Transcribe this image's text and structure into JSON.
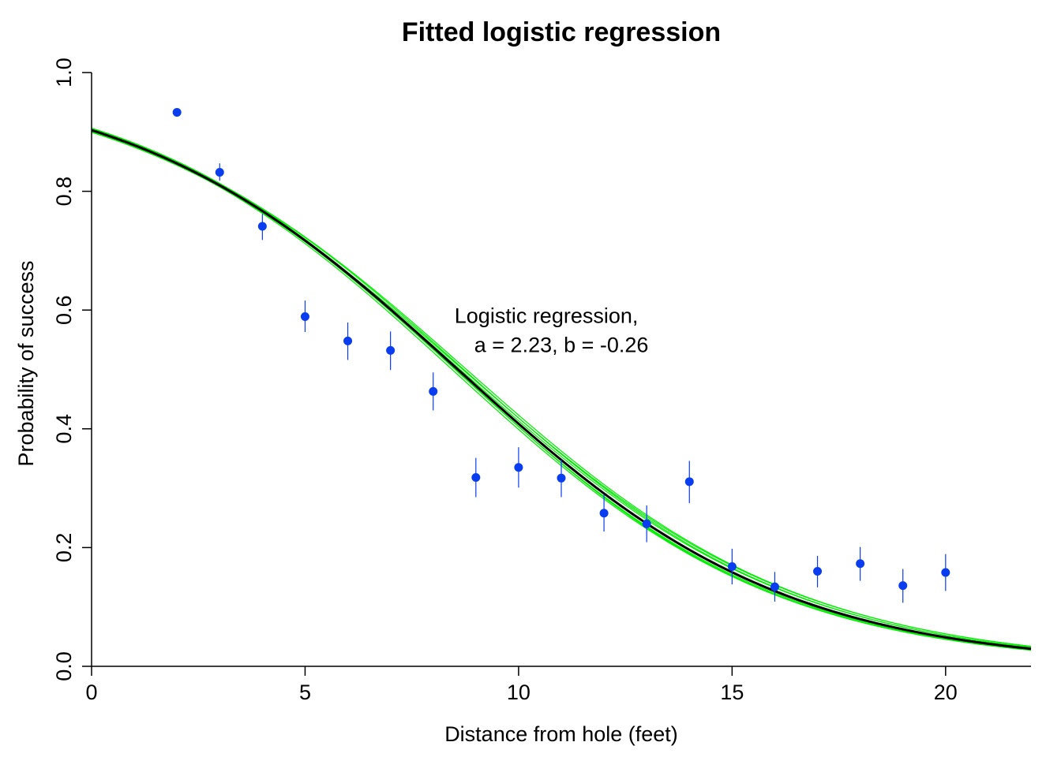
{
  "chart_data": {
    "type": "scatter",
    "title": "Fitted logistic regression",
    "xlabel": "Distance from hole (feet)",
    "ylabel": "Probability of success",
    "xlim": [
      0,
      22
    ],
    "ylim": [
      0,
      1
    ],
    "x_ticks": [
      0,
      5,
      10,
      15,
      20
    ],
    "x_tick_labels": [
      "0",
      "5",
      "10",
      "15",
      "20"
    ],
    "y_ticks": [
      0,
      0.2,
      0.4,
      0.6,
      0.8,
      1.0
    ],
    "y_tick_labels": [
      "0.0",
      "0.2",
      "0.4",
      "0.6",
      "0.8",
      "1.0"
    ],
    "grid": false,
    "annotation": {
      "lines": [
        "Logistic regression,",
        "a = 2.23, b = -0.26"
      ],
      "x": 8.5,
      "y": 0.59
    },
    "fit": {
      "a": 2.23,
      "b": -0.26,
      "color": "#000000"
    },
    "uncertainty_curves": {
      "color": "#00ee00",
      "params": [
        [
          2.25,
          -0.262
        ],
        [
          2.21,
          -0.258
        ],
        [
          2.24,
          -0.257
        ],
        [
          2.22,
          -0.263
        ],
        [
          2.2,
          -0.255
        ],
        [
          2.26,
          -0.265
        ],
        [
          2.23,
          -0.254
        ],
        [
          2.19,
          -0.252
        ],
        [
          2.27,
          -0.266
        ],
        [
          2.23,
          -0.262
        ]
      ]
    },
    "points_color": "#0a3cf0",
    "points": [
      {
        "x": 2,
        "y": 0.933,
        "lo": 0.928,
        "hi": 0.938
      },
      {
        "x": 3,
        "y": 0.832,
        "lo": 0.818,
        "hi": 0.847
      },
      {
        "x": 4,
        "y": 0.741,
        "lo": 0.718,
        "hi": 0.762
      },
      {
        "x": 5,
        "y": 0.589,
        "lo": 0.563,
        "hi": 0.616
      },
      {
        "x": 6,
        "y": 0.548,
        "lo": 0.516,
        "hi": 0.579
      },
      {
        "x": 7,
        "y": 0.532,
        "lo": 0.499,
        "hi": 0.564
      },
      {
        "x": 8,
        "y": 0.463,
        "lo": 0.431,
        "hi": 0.495
      },
      {
        "x": 9,
        "y": 0.318,
        "lo": 0.285,
        "hi": 0.351
      },
      {
        "x": 10,
        "y": 0.335,
        "lo": 0.301,
        "hi": 0.369
      },
      {
        "x": 11,
        "y": 0.317,
        "lo": 0.285,
        "hi": 0.348
      },
      {
        "x": 12,
        "y": 0.258,
        "lo": 0.227,
        "hi": 0.289
      },
      {
        "x": 13,
        "y": 0.24,
        "lo": 0.209,
        "hi": 0.271
      },
      {
        "x": 14,
        "y": 0.311,
        "lo": 0.275,
        "hi": 0.346
      },
      {
        "x": 15,
        "y": 0.168,
        "lo": 0.138,
        "hi": 0.198
      },
      {
        "x": 16,
        "y": 0.134,
        "lo": 0.109,
        "hi": 0.159
      },
      {
        "x": 17,
        "y": 0.16,
        "lo": 0.133,
        "hi": 0.186
      },
      {
        "x": 18,
        "y": 0.173,
        "lo": 0.144,
        "hi": 0.201
      },
      {
        "x": 19,
        "y": 0.136,
        "lo": 0.107,
        "hi": 0.164
      },
      {
        "x": 20,
        "y": 0.158,
        "lo": 0.127,
        "hi": 0.189
      }
    ]
  }
}
